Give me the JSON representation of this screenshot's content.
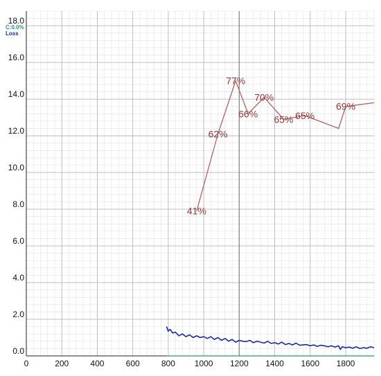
{
  "corner": {
    "top_text": "C:0.0%",
    "bottom_text": "Loss",
    "top_color": "#2e8b8b",
    "bottom_color": "#1a2a9c"
  },
  "chart_data": {
    "type": "line",
    "xlim": [
      0,
      1960
    ],
    "ylim": [
      0,
      18.8
    ],
    "x_ticks": [
      "0",
      "200",
      "400",
      "600",
      "800",
      "1000",
      "1200",
      "1400",
      "1600",
      "1800"
    ],
    "y_ticks": [
      "0.0",
      "2.0",
      "4.0",
      "6.0",
      "8.0",
      "10.0",
      "12.0",
      "14.0",
      "16.0",
      "18.0"
    ],
    "grid": true,
    "major_vertical_line_x": 1200,
    "colors": {
      "accuracy": "#b06060",
      "accuracy_label": "#8a3a3a",
      "loss": "#1a2a9c",
      "grid_major": "#b8b8b8",
      "grid_minor": "#e2e2e2"
    },
    "series": [
      {
        "key": "accuracy",
        "x": [
          960,
          1080,
          1180,
          1250,
          1340,
          1450,
          1570,
          1760,
          1800,
          1960
        ],
        "y": [
          7.9,
          12.1,
          15.0,
          13.2,
          14.1,
          12.9,
          13.1,
          12.4,
          13.6,
          13.8
        ],
        "point_labels": [
          {
            "x": 960,
            "y": 7.9,
            "label": "41%"
          },
          {
            "x": 1080,
            "y": 12.1,
            "label": "62%"
          },
          {
            "x": 1180,
            "y": 15.0,
            "label": "77%"
          },
          {
            "x": 1250,
            "y": 13.2,
            "label": "66%"
          },
          {
            "x": 1340,
            "y": 14.1,
            "label": "70%"
          },
          {
            "x": 1450,
            "y": 12.9,
            "label": "65%"
          },
          {
            "x": 1570,
            "y": 13.1,
            "label": "65%"
          },
          {
            "x": 1800,
            "y": 13.6,
            "label": "69%"
          }
        ]
      },
      {
        "key": "loss",
        "x": [
          790,
          800,
          810,
          825,
          840,
          860,
          880,
          900,
          920,
          940,
          960,
          980,
          1000,
          1020,
          1040,
          1060,
          1080,
          1100,
          1120,
          1140,
          1160,
          1180,
          1200,
          1220,
          1240,
          1260,
          1280,
          1300,
          1320,
          1340,
          1360,
          1380,
          1400,
          1420,
          1440,
          1460,
          1480,
          1500,
          1520,
          1540,
          1560,
          1580,
          1600,
          1620,
          1640,
          1660,
          1680,
          1700,
          1720,
          1740,
          1760,
          1770,
          1780,
          1800,
          1820,
          1840,
          1860,
          1880,
          1900,
          1920,
          1940,
          1960
        ],
        "y": [
          1.6,
          1.35,
          1.45,
          1.25,
          1.3,
          1.1,
          1.2,
          1.05,
          1.15,
          1.0,
          1.1,
          1.0,
          1.05,
          0.95,
          1.05,
          0.9,
          1.0,
          0.85,
          0.95,
          0.8,
          0.9,
          0.75,
          0.85,
          0.8,
          0.78,
          0.85,
          0.72,
          0.8,
          0.75,
          0.7,
          0.8,
          0.68,
          0.72,
          0.65,
          0.75,
          0.62,
          0.68,
          0.6,
          0.7,
          0.58,
          0.6,
          0.62,
          0.55,
          0.6,
          0.52,
          0.58,
          0.55,
          0.5,
          0.55,
          0.48,
          0.55,
          0.35,
          0.5,
          0.45,
          0.48,
          0.42,
          0.5,
          0.4,
          0.45,
          0.42,
          0.5,
          0.45
        ]
      },
      {
        "key": "baseline",
        "x": [
          790,
          1960
        ],
        "y": [
          0.0,
          0.0
        ]
      }
    ]
  }
}
